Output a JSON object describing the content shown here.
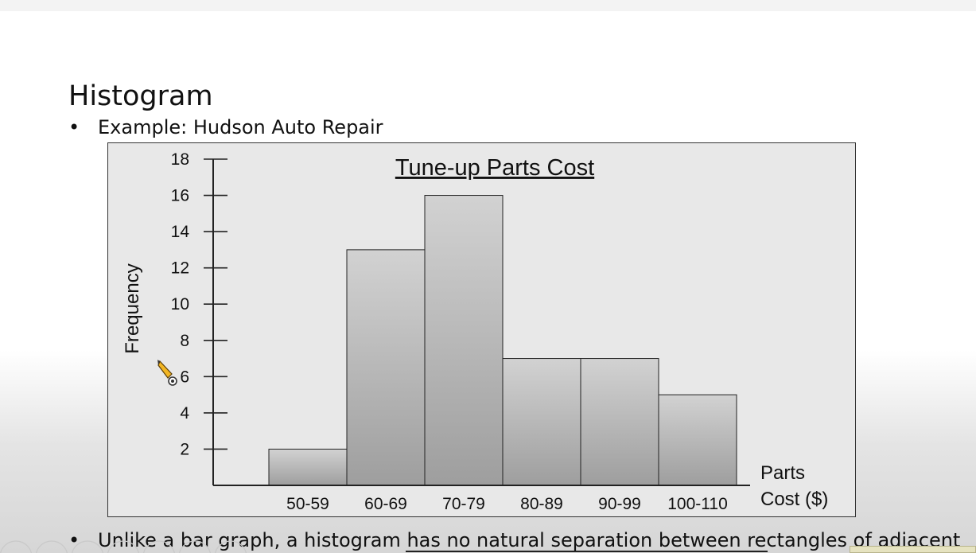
{
  "slide": {
    "title": "Histogram",
    "bullet1": "Example:  Hudson Auto Repair",
    "bullet2": "Unlike a bar graph, a histogram has no natural separation between rectangles of adjacent",
    "bullet_symbol": "•"
  },
  "icons": {
    "pencil_cursor": "pencil-cursor-icon"
  },
  "chart_data": {
    "type": "bar",
    "title": "Tune-up Parts Cost",
    "xlabel": "Parts Cost ($)",
    "xlabel_lines": [
      "Parts",
      "Cost ($)"
    ],
    "ylabel": "Frequency",
    "categories": [
      "50-59",
      "60-69",
      "70-79",
      "80-89",
      "90-99",
      "100-110"
    ],
    "values": [
      2,
      13,
      16,
      7,
      7,
      5
    ],
    "yticks": [
      2,
      4,
      6,
      8,
      10,
      12,
      14,
      16,
      18
    ],
    "ylim": [
      0,
      18
    ],
    "bar_gap": 0,
    "grid": false,
    "colors": {
      "bar_top": "#d2d2d2",
      "bar_bottom": "#9e9e9e",
      "bar_stroke": "#222222",
      "axis": "#222222",
      "plot_bg": "#e8e8e8"
    }
  }
}
